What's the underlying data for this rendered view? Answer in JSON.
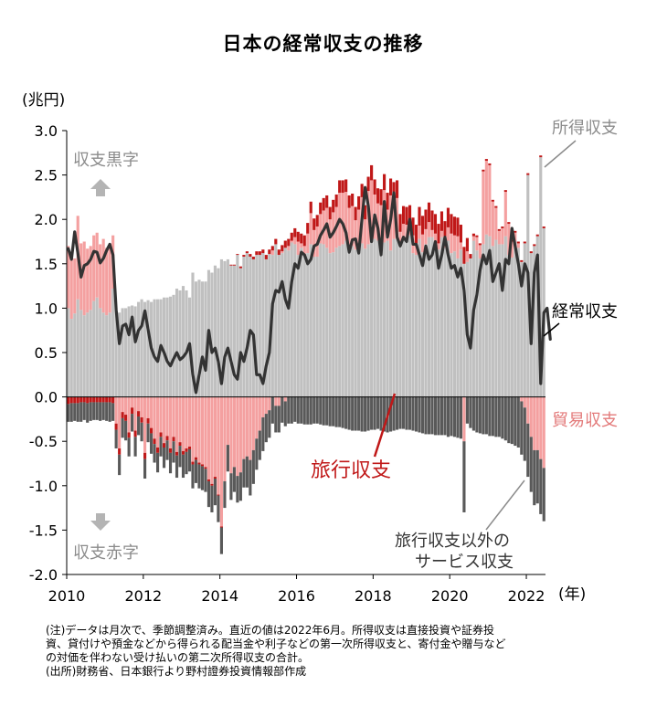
{
  "title": "日本の経常収支の推移",
  "unit_label": "(兆円)",
  "x_unit_label": "(年)",
  "colors": {
    "primary_income": "#c0c0c0",
    "primary_income_edge": "#a8a8a8",
    "trade": "#f4a0a0",
    "travel": "#c01818",
    "other_services": "#595959",
    "current_account": "#333333",
    "axis": "#000000",
    "annotation_grey": "#8c8c8c",
    "annotation_black": "#000000",
    "annotation_pink": "#e37a7a",
    "annotation_red": "#c01818",
    "arrow": "#b4b4b4"
  },
  "labels": {
    "primary_income": "所得収支",
    "current_account": "経常収支",
    "trade": "貿易収支",
    "travel": "旅行収支",
    "other_services_line1": "旅行収支以外の",
    "other_services_line2": "サービス収支",
    "surplus": "収支黒字",
    "deficit": "収支赤字"
  },
  "notes": [
    "(注)データは月次で、季節調整済み。直近の値は2022年6月。所得収支は直接投資や証券投",
    "資、貸付けや預金などから得られる配当金や利子などの第一次所得収支と、寄付金や贈与など",
    "の対価を伴わない受け払いの第二次所得収支の合計。",
    "(出所)財務省、日本銀行より野村證券投資情報部作成"
  ],
  "chart_data": {
    "type": "bar",
    "stacked": true,
    "frequency": "monthly",
    "x_start": "2010-01",
    "x_end": "2022-06",
    "xticks": [
      "2010",
      "2012",
      "2014",
      "2016",
      "2018",
      "2020",
      "2022"
    ],
    "ylim": [
      -2.0,
      3.0
    ],
    "yticks": [
      "-2.0",
      "-1.5",
      "-1.0",
      "-0.5",
      "0.0",
      "0.5",
      "1.0",
      "1.5",
      "2.0",
      "2.5",
      "3.0"
    ],
    "ylabel": "(兆円)",
    "xlabel": "(年)",
    "series": [
      {
        "name": "所得収支",
        "kind": "bar",
        "values": [
          1.0,
          0.88,
          0.94,
          1.1,
          0.98,
          0.92,
          0.95,
          0.98,
          1.08,
          1.12,
          1.0,
          0.95,
          0.92,
          0.95,
          1.22,
          0.98,
          0.95,
          1.0,
          1.0,
          1.02,
          1.03,
          1.02,
          1.07,
          1.1,
          1.07,
          1.09,
          1.07,
          1.1,
          1.1,
          1.1,
          1.12,
          1.12,
          1.13,
          1.15,
          1.22,
          1.2,
          1.25,
          1.2,
          1.12,
          1.4,
          1.3,
          1.32,
          1.3,
          1.3,
          1.43,
          1.4,
          1.48,
          1.45,
          1.55,
          1.53,
          1.55,
          1.48,
          1.48,
          1.6,
          1.45,
          1.58,
          1.62,
          1.58,
          1.55,
          1.6,
          1.6,
          1.62,
          1.55,
          1.61,
          1.6,
          1.72,
          1.6,
          1.62,
          1.68,
          1.65,
          1.74,
          1.72,
          1.6,
          1.68,
          1.6,
          1.62,
          1.72,
          1.58,
          1.58,
          1.73,
          1.72,
          1.68,
          1.62,
          1.63,
          1.68,
          1.7,
          1.72,
          1.76,
          1.72,
          1.7,
          1.66,
          1.73,
          1.73,
          1.67,
          1.72,
          1.76,
          1.78,
          1.76,
          1.71,
          1.74,
          1.76,
          1.65,
          1.78,
          1.82,
          1.72,
          1.78,
          1.78,
          1.82,
          1.62,
          1.6,
          1.78,
          1.63,
          1.72,
          1.8,
          1.8,
          1.74,
          1.66,
          1.8,
          1.68,
          1.76,
          1.62,
          1.64,
          1.56,
          1.66,
          1.5,
          1.52,
          1.56,
          1.76,
          1.65,
          1.56,
          1.72,
          1.83,
          1.81,
          1.7,
          1.77,
          1.72,
          1.72,
          1.81,
          1.6,
          1.57,
          1.75,
          1.68,
          1.52,
          1.73,
          2.5,
          1.62,
          1.7,
          1.81,
          2.7,
          1.9
        ]
      },
      {
        "name": "貿易収支",
        "kind": "bar",
        "values": [
          0.7,
          0.72,
          0.62,
          0.94,
          0.75,
          0.83,
          0.72,
          0.72,
          0.74,
          0.73,
          0.72,
          0.83,
          0.76,
          0.78,
          0.6,
          -0.3,
          -0.58,
          -0.17,
          -0.2,
          -0.4,
          -0.12,
          -0.38,
          -0.16,
          -0.23,
          -0.63,
          -0.24,
          -0.35,
          -0.47,
          -0.57,
          -0.4,
          -0.52,
          -0.44,
          -0.58,
          -0.45,
          -0.62,
          -0.51,
          -0.61,
          -0.58,
          -0.56,
          -0.73,
          -0.68,
          -0.74,
          -0.76,
          -0.79,
          -0.93,
          -0.98,
          -0.9,
          -1.1,
          -1.46,
          -0.95,
          -0.54,
          -0.86,
          -0.79,
          -0.89,
          -0.85,
          -0.7,
          -0.67,
          -0.71,
          -0.6,
          -0.47,
          -0.38,
          -0.23,
          -0.19,
          -0.15,
          0.05,
          -0.1,
          -0.1,
          0.02,
          -0.05,
          0.05,
          0.02,
          0.08,
          0.15,
          0.05,
          0.1,
          0.22,
          0.35,
          0.3,
          0.34,
          0.33,
          0.38,
          0.45,
          0.38,
          0.45,
          0.46,
          0.6,
          0.58,
          0.55,
          0.41,
          0.45,
          0.33,
          0.38,
          0.52,
          0.33,
          0.6,
          0.68,
          0.5,
          0.42,
          0.45,
          0.59,
          0.35,
          0.62,
          0.45,
          0.42,
          0.14,
          0.17,
          0.16,
          0.14,
          0.2,
          0.13,
          0.15,
          0.2,
          0.17,
          0.17,
          0.08,
          0.1,
          0.07,
          0.07,
          0.08,
          0.15,
          0.22,
          0.18,
          0.25,
          0.08,
          -0.5,
          0.12,
          0.0,
          0.05,
          0.15,
          0.15,
          0.82,
          0.83,
          0.8,
          0.5,
          0.36,
          0.15,
          0.18,
          0.5,
          0.35,
          0.18,
          0.1,
          0.05,
          -0.05,
          -0.12,
          -0.3,
          -0.45,
          -0.6,
          -0.6,
          -0.7,
          -0.8,
          -0.95,
          -1.1
        ]
      },
      {
        "name": "旅行収支",
        "kind": "bar",
        "values": [
          -0.08,
          -0.07,
          -0.07,
          -0.07,
          -0.06,
          -0.06,
          -0.07,
          -0.06,
          -0.06,
          -0.06,
          -0.06,
          -0.06,
          -0.06,
          -0.06,
          -0.07,
          -0.07,
          -0.07,
          -0.07,
          -0.07,
          -0.06,
          -0.07,
          -0.07,
          -0.06,
          -0.06,
          -0.07,
          -0.06,
          -0.06,
          -0.06,
          -0.06,
          -0.05,
          -0.05,
          -0.05,
          -0.05,
          -0.05,
          -0.04,
          -0.04,
          -0.04,
          -0.04,
          -0.03,
          -0.03,
          -0.03,
          -0.02,
          -0.02,
          -0.02,
          -0.02,
          -0.02,
          -0.02,
          -0.01,
          -0.01,
          0.0,
          0.0,
          0.01,
          0.01,
          0.01,
          0.02,
          0.02,
          0.02,
          0.03,
          0.03,
          0.04,
          0.04,
          0.04,
          0.05,
          0.05,
          0.05,
          0.06,
          0.06,
          0.07,
          0.08,
          0.08,
          0.09,
          0.1,
          0.11,
          0.11,
          0.12,
          0.12,
          0.13,
          0.13,
          0.13,
          0.13,
          0.14,
          0.14,
          0.14,
          0.14,
          0.14,
          0.14,
          0.14,
          0.14,
          0.14,
          0.14,
          0.15,
          0.15,
          0.15,
          0.16,
          0.16,
          0.17,
          0.17,
          0.17,
          0.18,
          0.18,
          0.19,
          0.19,
          0.19,
          0.2,
          0.2,
          0.2,
          0.2,
          0.2,
          0.2,
          0.21,
          0.21,
          0.21,
          0.22,
          0.22,
          0.22,
          0.22,
          0.22,
          0.22,
          0.22,
          0.22,
          0.22,
          0.21,
          0.21,
          0.2,
          0.19,
          0.15,
          0.05,
          0.03,
          0.02,
          0.02,
          0.02,
          0.02,
          0.02,
          0.02,
          0.02,
          0.02,
          0.02,
          0.02,
          0.02,
          0.02,
          0.02,
          0.02,
          0.02,
          0.02,
          0.02,
          0.02,
          0.02,
          0.02,
          0.02,
          0.02,
          0.02,
          0.02
        ]
      },
      {
        "name": "旅行収支以外のサービス収支",
        "kind": "bar",
        "values": [
          -0.2,
          -0.21,
          -0.2,
          -0.21,
          -0.22,
          -0.2,
          -0.22,
          -0.21,
          -0.2,
          -0.2,
          -0.21,
          -0.2,
          -0.21,
          -0.22,
          -0.2,
          -0.21,
          -0.23,
          -0.22,
          -0.22,
          -0.21,
          -0.2,
          -0.22,
          -0.21,
          -0.21,
          -0.22,
          -0.21,
          -0.23,
          -0.21,
          -0.22,
          -0.22,
          -0.23,
          -0.22,
          -0.23,
          -0.24,
          -0.25,
          -0.24,
          -0.26,
          -0.25,
          -0.25,
          -0.27,
          -0.26,
          -0.27,
          -0.27,
          -0.26,
          -0.29,
          -0.3,
          -0.3,
          -0.3,
          -0.3,
          -0.3,
          -0.3,
          -0.3,
          -0.28,
          -0.3,
          -0.32,
          -0.32,
          -0.35,
          -0.4,
          -0.38,
          -0.35,
          -0.33,
          -0.38,
          -0.32,
          -0.31,
          -0.3,
          -0.3,
          -0.3,
          -0.29,
          -0.28,
          -0.3,
          -0.3,
          -0.28,
          -0.3,
          -0.3,
          -0.31,
          -0.31,
          -0.31,
          -0.3,
          -0.3,
          -0.31,
          -0.32,
          -0.32,
          -0.33,
          -0.33,
          -0.34,
          -0.34,
          -0.35,
          -0.36,
          -0.37,
          -0.38,
          -0.38,
          -0.38,
          -0.39,
          -0.39,
          -0.38,
          -0.37,
          -0.37,
          -0.36,
          -0.38,
          -0.39,
          -0.4,
          -0.39,
          -0.38,
          -0.37,
          -0.36,
          -0.36,
          -0.37,
          -0.37,
          -0.38,
          -0.39,
          -0.4,
          -0.41,
          -0.42,
          -0.42,
          -0.42,
          -0.43,
          -0.43,
          -0.43,
          -0.43,
          -0.45,
          -0.44,
          -0.45,
          -0.46,
          -0.47,
          -0.8,
          -0.3,
          -0.35,
          -0.38,
          -0.4,
          -0.41,
          -0.42,
          -0.42,
          -0.44,
          -0.44,
          -0.45,
          -0.45,
          -0.47,
          -0.49,
          -0.52,
          -0.53,
          -0.55,
          -0.57,
          -0.6,
          -0.6,
          -0.6,
          -0.62,
          -0.62,
          -0.6,
          -0.62,
          -0.6
        ]
      },
      {
        "name": "経常収支",
        "kind": "line",
        "values": [
          1.67,
          1.55,
          1.86,
          1.62,
          1.35,
          1.48,
          1.5,
          1.55,
          1.64,
          1.63,
          1.51,
          1.56,
          1.65,
          1.72,
          1.6,
          0.98,
          0.6,
          0.8,
          0.82,
          0.7,
          0.9,
          0.62,
          0.75,
          0.8,
          0.97,
          0.76,
          0.55,
          0.45,
          0.4,
          0.58,
          0.5,
          0.4,
          0.35,
          0.43,
          0.5,
          0.42,
          0.45,
          0.5,
          0.6,
          0.25,
          0.05,
          0.25,
          0.45,
          0.3,
          0.75,
          0.5,
          0.55,
          0.4,
          0.15,
          0.45,
          0.55,
          0.4,
          0.25,
          0.2,
          0.5,
          0.4,
          0.55,
          0.75,
          0.7,
          0.25,
          0.25,
          0.15,
          0.35,
          0.5,
          1.05,
          1.2,
          1.18,
          1.3,
          1.1,
          1.0,
          1.3,
          1.5,
          1.45,
          1.63,
          1.6,
          1.5,
          1.55,
          1.7,
          1.72,
          1.82,
          1.88,
          1.95,
          1.8,
          1.85,
          1.92,
          2.0,
          1.95,
          1.85,
          1.63,
          1.77,
          1.78,
          1.62,
          2.0,
          2.36,
          2.15,
          1.75,
          2.05,
          1.9,
          1.6,
          2.2,
          1.8,
          2.0,
          2.3,
          1.8,
          1.7,
          1.8,
          1.75,
          2.0,
          1.72,
          1.72,
          1.6,
          1.48,
          1.7,
          1.55,
          1.6,
          1.75,
          1.45,
          1.6,
          1.8,
          1.6,
          1.45,
          1.48,
          1.35,
          1.45,
          1.2,
          0.7,
          0.55,
          0.98,
          1.15,
          1.43,
          1.6,
          1.5,
          1.65,
          1.3,
          1.4,
          1.5,
          1.2,
          1.55,
          1.5,
          1.9,
          1.7,
          1.5,
          1.25,
          1.5,
          1.4,
          0.6,
          1.4,
          1.6,
          0.15,
          0.95,
          1.0,
          0.65
        ]
      }
    ]
  }
}
